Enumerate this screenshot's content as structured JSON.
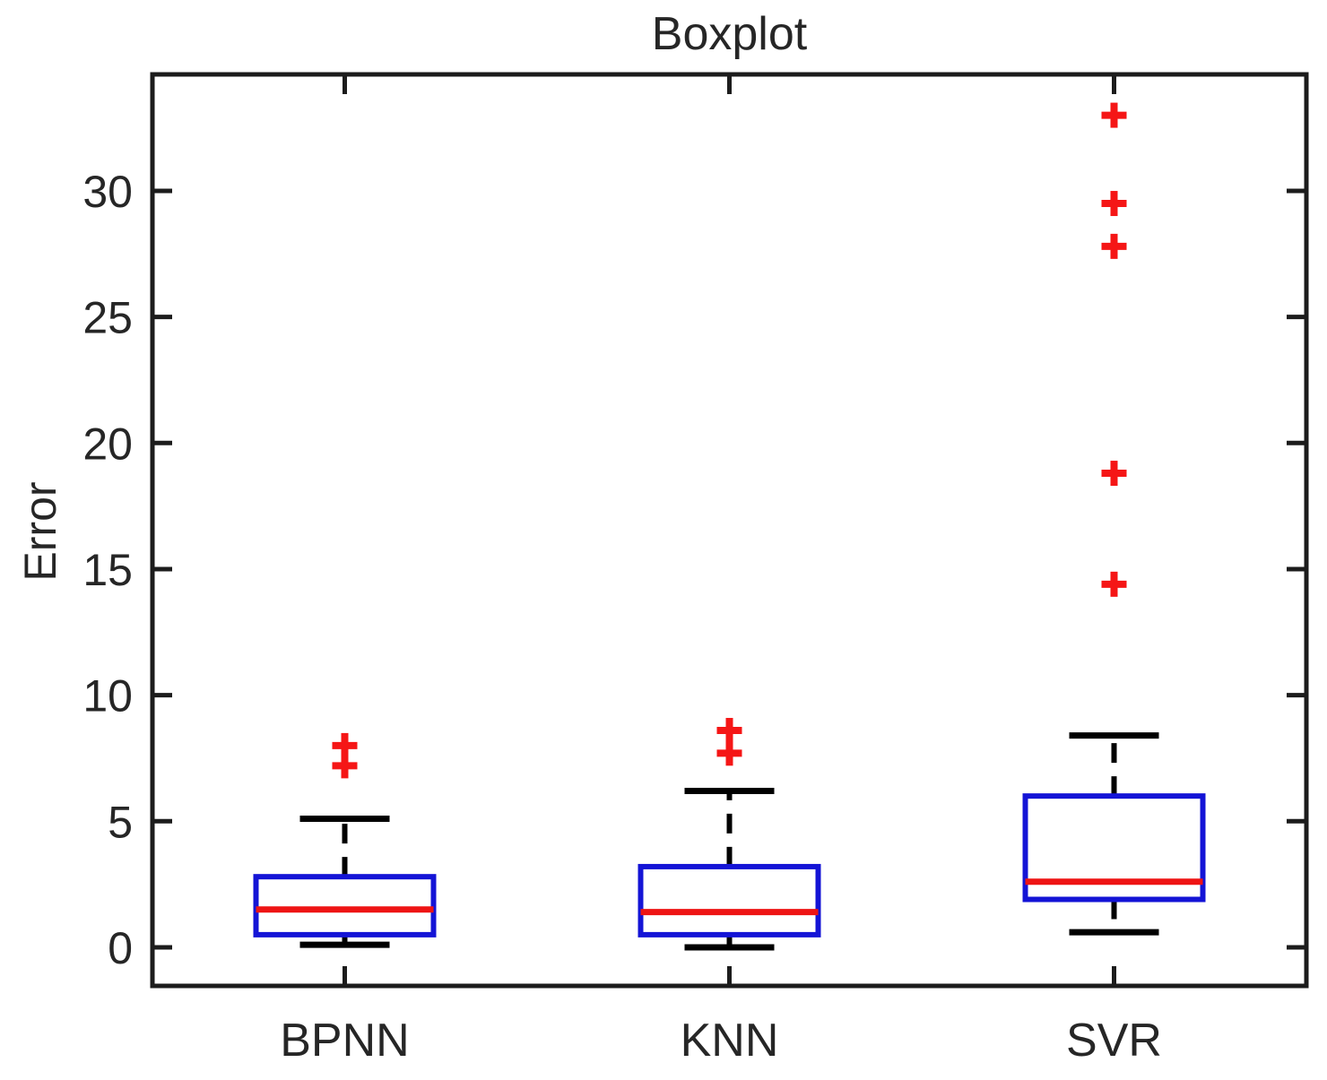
{
  "chart_data": {
    "type": "boxplot",
    "title": "Boxplot",
    "ylabel": "Error",
    "xlabel": "",
    "categories": [
      "BPNN",
      "KNN",
      "SVR"
    ],
    "yticks": [
      0,
      5,
      10,
      15,
      20,
      25,
      30
    ],
    "ylim": [
      -1.53,
      34.62
    ],
    "xlim_categories": [
      0.5,
      3.5
    ],
    "grid": false,
    "legend": "none",
    "series": [
      {
        "name": "BPNN",
        "whisker_low": 0.1,
        "q1": 0.5,
        "median": 1.5,
        "q3": 2.8,
        "whisker_high": 5.1,
        "outliers": [
          7.2,
          8.0
        ]
      },
      {
        "name": "KNN",
        "whisker_low": 0.0,
        "q1": 0.5,
        "median": 1.4,
        "q3": 3.2,
        "whisker_high": 6.2,
        "outliers": [
          7.7,
          8.6
        ]
      },
      {
        "name": "SVR",
        "whisker_low": 0.6,
        "q1": 1.9,
        "median": 2.6,
        "q3": 6.0,
        "whisker_high": 8.4,
        "outliers": [
          14.4,
          18.8,
          27.8,
          29.5,
          33.0
        ]
      }
    ],
    "colors": {
      "box": "#1414d6",
      "median": "#ee1414",
      "outlier": "#f51616",
      "whisker": "#000000",
      "axis": "#1c1c1c",
      "tick_label": "#262626"
    }
  }
}
